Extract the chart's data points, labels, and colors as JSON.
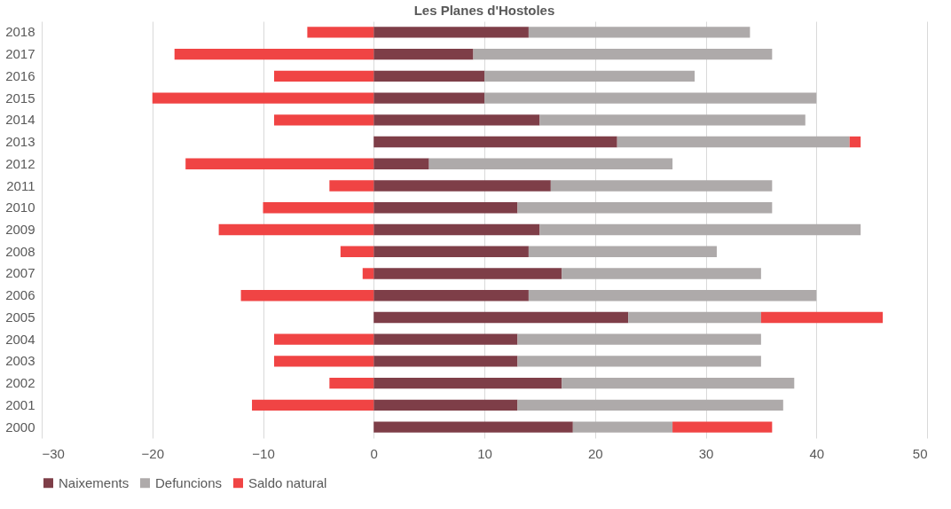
{
  "chart_data": {
    "type": "bar",
    "orientation": "horizontal",
    "stacked": true,
    "title": "Les Planes d'Hostoles",
    "categories": [
      "2018",
      "2017",
      "2016",
      "2015",
      "2014",
      "2013",
      "2012",
      "2011",
      "2010",
      "2009",
      "2008",
      "2007",
      "2006",
      "2005",
      "2004",
      "2003",
      "2002",
      "2001",
      "2000"
    ],
    "series": [
      {
        "name": "Naixements",
        "color": "#7e3e48",
        "values": [
          14,
          9,
          10,
          10,
          15,
          22,
          5,
          16,
          13,
          15,
          14,
          17,
          14,
          23,
          13,
          13,
          17,
          13,
          18
        ]
      },
      {
        "name": "Defuncions",
        "color": "#aeaaaa",
        "values": [
          20,
          27,
          19,
          30,
          24,
          21,
          22,
          20,
          23,
          29,
          17,
          18,
          26,
          12,
          22,
          22,
          21,
          24,
          9
        ]
      },
      {
        "name": "Saldo natural",
        "color": "#f04444",
        "values": [
          -6,
          -18,
          -9,
          -20,
          -9,
          1,
          -17,
          -4,
          -10,
          -14,
          -3,
          -1,
          -12,
          11,
          -9,
          -9,
          -4,
          -11,
          9
        ]
      }
    ],
    "xlim": [
      -30,
      50
    ],
    "xticks": [
      -30,
      -20,
      -10,
      0,
      10,
      20,
      30,
      40,
      50
    ],
    "grid": "x",
    "legend": "bottom"
  }
}
